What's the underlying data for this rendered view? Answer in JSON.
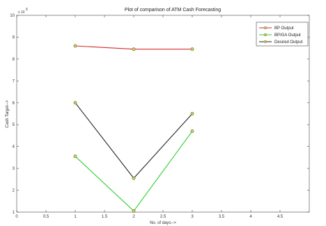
{
  "chart_data": {
    "type": "line",
    "title": "Plot of comparison of ATM Cash Forecasting",
    "xlabel": "No. of days-->",
    "ylabel": "Cash Target-->",
    "y_exponent_label": "x 10",
    "y_exponent_power": "6",
    "xlim": [
      0,
      5
    ],
    "ylim": [
      1,
      10
    ],
    "x_ticks": [
      0,
      0.5,
      1,
      1.5,
      2,
      2.5,
      3,
      3.5,
      4,
      4.5
    ],
    "x_tick_labels": [
      "0",
      "0.5",
      "1",
      "1.5",
      "2",
      "2.5",
      "3",
      "3.5",
      "4",
      "4.5"
    ],
    "y_ticks": [
      1,
      2,
      3,
      4,
      5,
      6,
      7,
      8,
      9,
      10
    ],
    "y_tick_labels": [
      "1",
      "2",
      "3",
      "4",
      "5",
      "6",
      "7",
      "8",
      "9",
      "10"
    ],
    "grid": false,
    "legend_position": "top-right",
    "series": [
      {
        "name": "BP Output",
        "color": "#d62728",
        "x": [
          1,
          2,
          3
        ],
        "y": [
          8.6,
          8.45,
          8.45
        ]
      },
      {
        "name": "BP/GA Output",
        "color": "#2ecc2e",
        "x": [
          1,
          2,
          3
        ],
        "y": [
          3.55,
          1.05,
          4.7
        ]
      },
      {
        "name": "Desired Output",
        "color": "#222222",
        "x": [
          1,
          2,
          3
        ],
        "y": [
          6.0,
          2.55,
          5.5
        ]
      }
    ],
    "marker_fill": "#d8d640",
    "marker_stroke": "#555555"
  }
}
